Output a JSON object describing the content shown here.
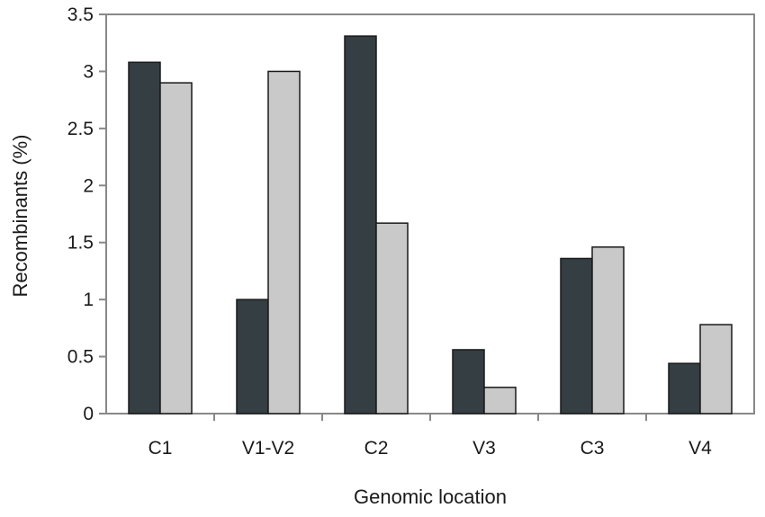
{
  "chart_data": {
    "type": "bar",
    "categories": [
      "C1",
      "V1-V2",
      "C2",
      "V3",
      "C3",
      "V4"
    ],
    "series": [
      {
        "values": [
          3.08,
          1.0,
          3.31,
          0.56,
          1.36,
          0.44
        ]
      },
      {
        "values": [
          2.9,
          3.0,
          1.67,
          0.23,
          1.46,
          0.78
        ]
      }
    ],
    "xlabel": "Genomic location",
    "ylabel": "Recombinants (%)",
    "ylim": [
      0,
      3.5
    ],
    "yticks": [
      "0",
      "0.5",
      "1",
      "1.5",
      "2",
      "2.5",
      "3",
      "3.5"
    ],
    "grid": false,
    "legend": false
  },
  "colors": {
    "series_1": "#353e42",
    "series_2": "#c9c9c9",
    "bar_stroke": "#1a1a1a",
    "axis": "#888888"
  }
}
